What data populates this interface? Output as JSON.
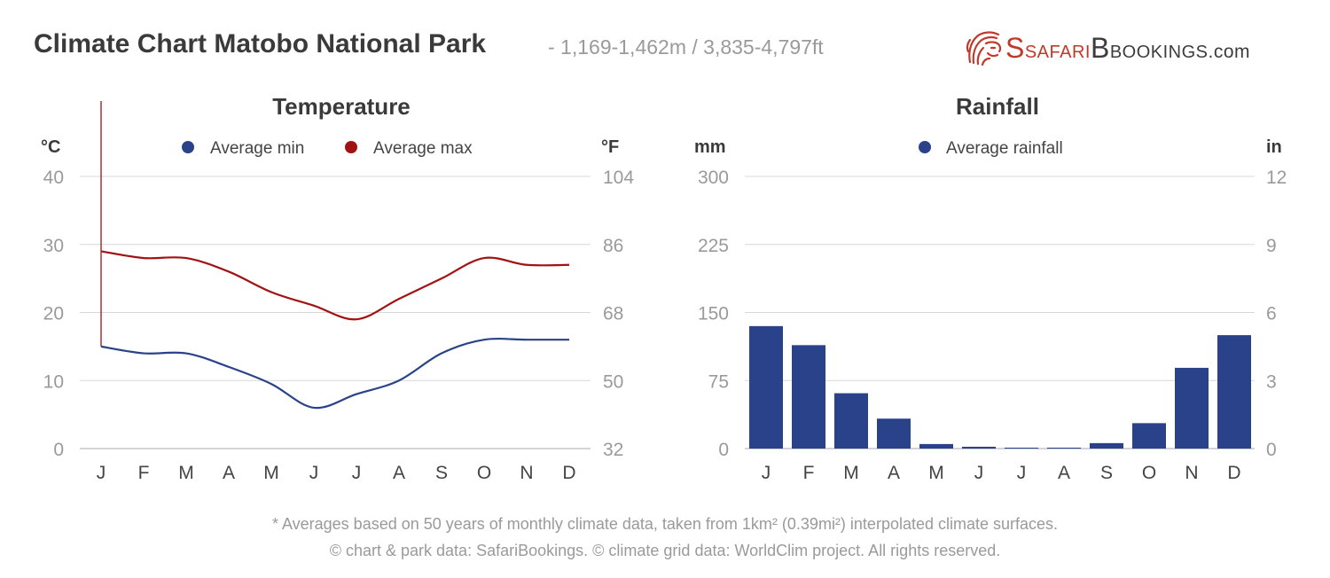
{
  "header": {
    "title": "Climate Chart Matobo National Park",
    "subtitle": "- 1,169-1,462m / 3,835-4,797ft"
  },
  "brand": {
    "part1": "Safari",
    "part2": "Bookings",
    "part3": ".com",
    "color": "#c0392b"
  },
  "chart_data": [
    {
      "type": "line",
      "title": "Temperature",
      "ylabel": "°C",
      "ylabel_right": "°F",
      "ylim": [
        0,
        40
      ],
      "yticks": [
        0,
        10,
        20,
        30,
        40
      ],
      "yticks_right": [
        32,
        50,
        68,
        86,
        104
      ],
      "categories": [
        "J",
        "F",
        "M",
        "A",
        "M",
        "J",
        "J",
        "A",
        "S",
        "O",
        "N",
        "D"
      ],
      "grid": true,
      "legend": "top-center",
      "series": [
        {
          "name": "Average min",
          "color": "#2a4289",
          "values": [
            15,
            14,
            14,
            12,
            9.5,
            6,
            8,
            10,
            14,
            16,
            16,
            16
          ]
        },
        {
          "name": "Average max",
          "color": "#a31212",
          "values": [
            29,
            28,
            28,
            26,
            23,
            21,
            19,
            22,
            25,
            28,
            27,
            27
          ]
        }
      ]
    },
    {
      "type": "bar",
      "title": "Rainfall",
      "ylabel": "mm",
      "ylabel_right": "in",
      "ylim": [
        0,
        300
      ],
      "yticks": [
        0,
        75,
        150,
        225,
        300
      ],
      "yticks_right": [
        0,
        3,
        6,
        9,
        12
      ],
      "categories": [
        "J",
        "F",
        "M",
        "A",
        "M",
        "J",
        "J",
        "A",
        "S",
        "O",
        "N",
        "D"
      ],
      "grid": true,
      "legend": "top-center",
      "series": [
        {
          "name": "Average rainfall",
          "color": "#2a4289",
          "values": [
            135,
            114,
            61,
            33,
            5,
            2,
            1,
            1,
            6,
            28,
            89,
            125
          ]
        }
      ]
    }
  ],
  "footnotes": {
    "line1": "* Averages based on 50 years of monthly climate data, taken from 1km² (0.39mi²) interpolated climate surfaces.",
    "line2": "© chart & park data: SafariBookings. © climate grid data: WorldClim project. All rights reserved."
  }
}
